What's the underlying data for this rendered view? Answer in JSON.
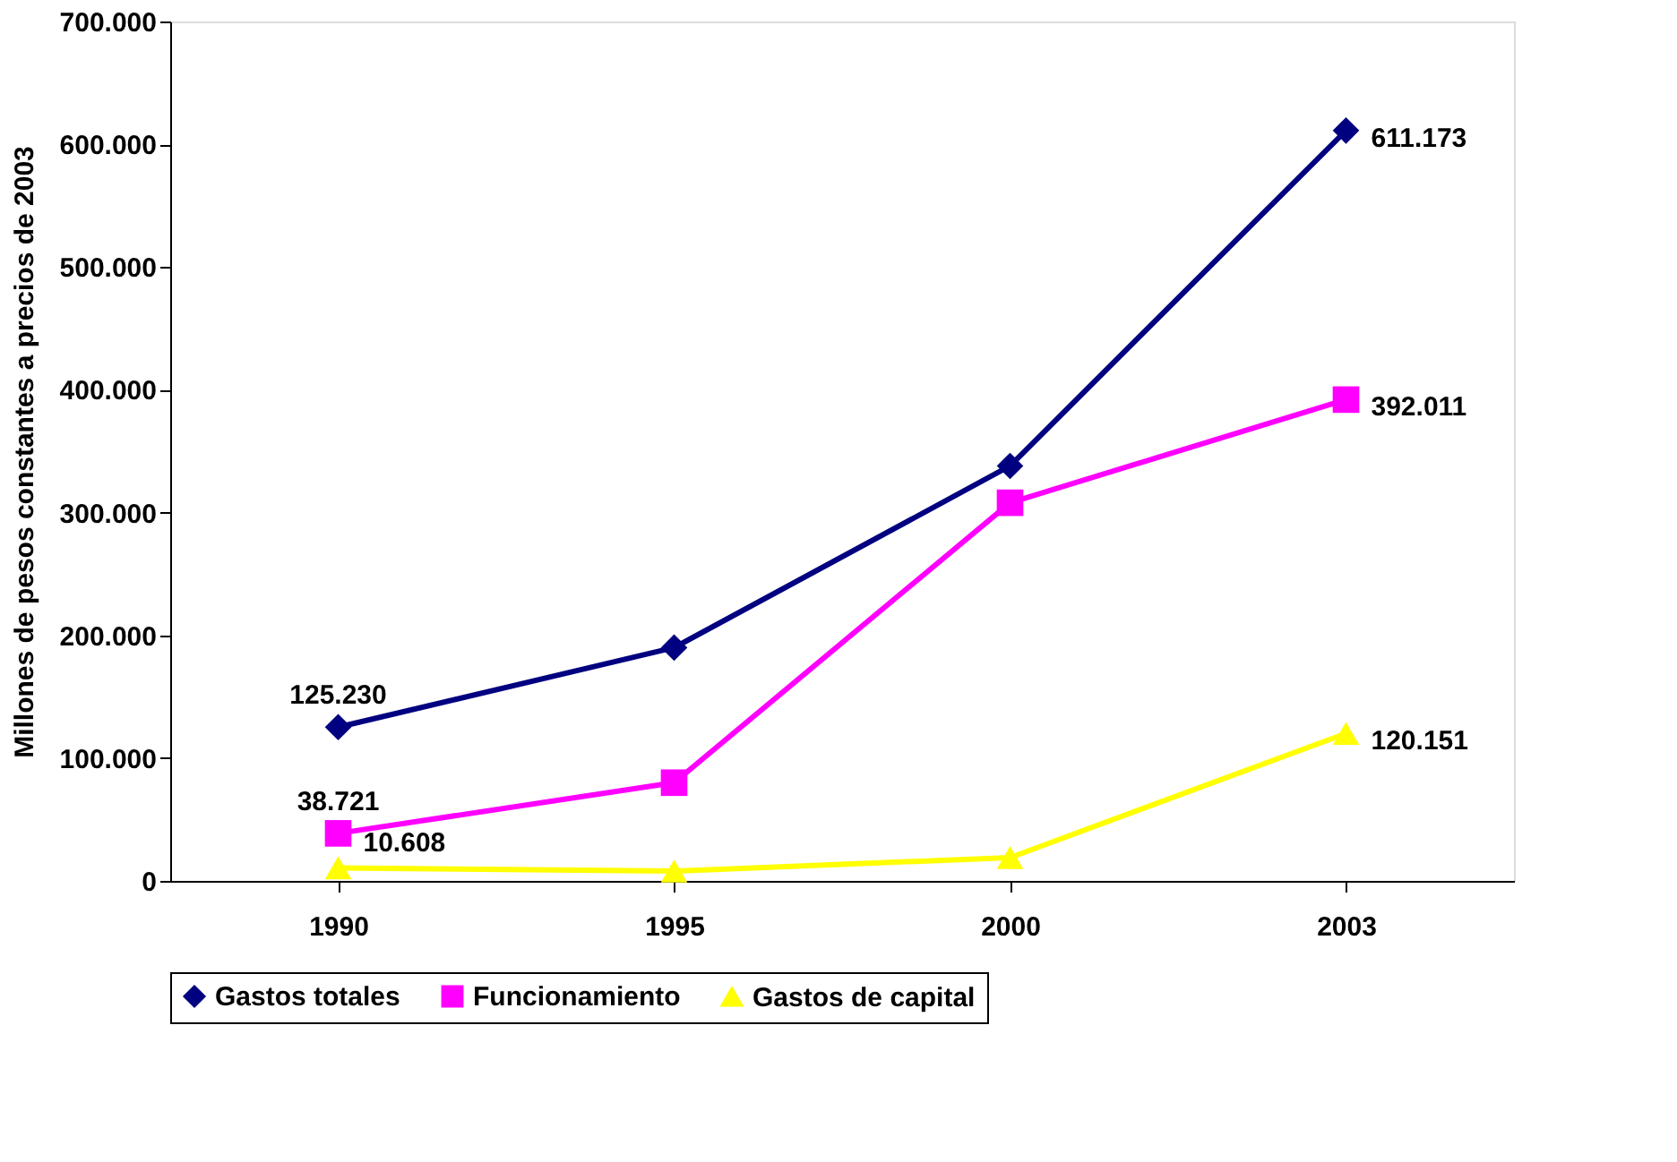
{
  "chart_data": {
    "type": "line",
    "ylabel": "Millones de pesos constantes a precios de 2003",
    "categories": [
      "1990",
      "1995",
      "2000",
      "2003"
    ],
    "ylim": [
      0,
      700000
    ],
    "yticks": [
      {
        "value": 0,
        "label": "0"
      },
      {
        "value": 100000,
        "label": "100.000"
      },
      {
        "value": 200000,
        "label": "200.000"
      },
      {
        "value": 300000,
        "label": "300.000"
      },
      {
        "value": 400000,
        "label": "400.000"
      },
      {
        "value": 500000,
        "label": "500.000"
      },
      {
        "value": 600000,
        "label": "600.000"
      },
      {
        "value": 700000,
        "label": "700.000"
      }
    ],
    "grid": false,
    "legend": "bottom",
    "line_style": "solid",
    "series": [
      {
        "name": "Gastos totales",
        "color": "#000080",
        "marker": "diamond",
        "values": [
          125230,
          190000,
          338000,
          611173
        ],
        "value_labels": [
          "125.230",
          null,
          null,
          "611.173"
        ]
      },
      {
        "name": "Funcionamiento",
        "color": "#ff00ff",
        "marker": "square",
        "values": [
          38721,
          80000,
          308000,
          392011
        ],
        "value_labels": [
          "38.721",
          null,
          null,
          "392.011"
        ]
      },
      {
        "name": "Gastos de capital",
        "color": "#ffff00",
        "marker": "triangle",
        "values": [
          10608,
          8000,
          19000,
          120151
        ],
        "value_labels": [
          "10.608",
          null,
          null,
          "120.151"
        ]
      }
    ]
  }
}
